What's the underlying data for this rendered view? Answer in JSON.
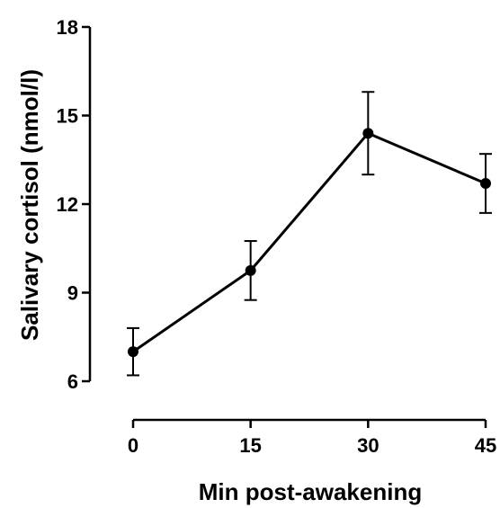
{
  "chart_data": {
    "type": "line",
    "title": "",
    "xlabel": "Min post-awakening",
    "ylabel": "Salivary cortisol (nmol/l)",
    "x": [
      0,
      15,
      30,
      45
    ],
    "x_ticks": [
      "0",
      "15",
      "30",
      "45"
    ],
    "xlim": [
      0,
      45
    ],
    "ylim": [
      6,
      18
    ],
    "y_ticks": [
      "6",
      "9",
      "12",
      "15",
      "18"
    ],
    "grid": false,
    "legend": "none",
    "series": [
      {
        "values": [
          7.0,
          9.75,
          14.4,
          12.7
        ],
        "error": [
          0.8,
          1.0,
          1.4,
          1.0
        ],
        "color": "#000000"
      }
    ]
  }
}
